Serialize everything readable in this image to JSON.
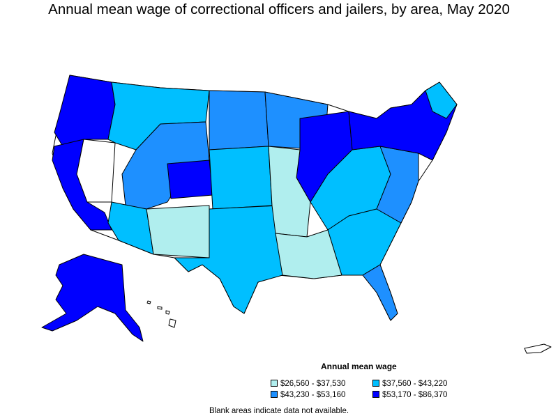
{
  "title": "Annual mean wage of correctional officers and jailers, by area, May 2020",
  "legend": {
    "title": "Annual mean wage",
    "items": [
      {
        "label": "$26,560 - $37,530",
        "color": "#b0eeee"
      },
      {
        "label": "$37,560 - $43,220",
        "color": "#00bfff"
      },
      {
        "label": "$43,230 - $53,160",
        "color": "#1e90ff"
      },
      {
        "label": "$53,170 - $86,370",
        "color": "#0000ff"
      }
    ]
  },
  "note": "Blank areas indicate data not available.",
  "colors": {
    "no_data": "#ffffff",
    "border": "#000000"
  }
}
